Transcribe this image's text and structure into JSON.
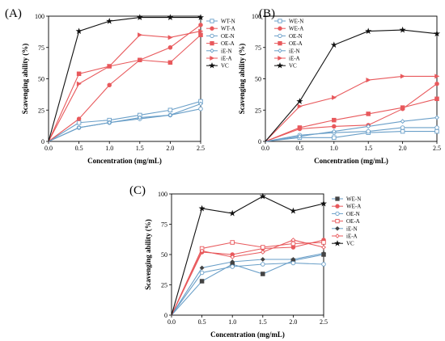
{
  "colors": {
    "blue": "#6a9fc8",
    "red": "#e8595c",
    "pink": "#e89a9a",
    "dark": "#444444",
    "black": "#111111",
    "gray": "#777777"
  },
  "chart_data": [
    {
      "type": "line",
      "panel_label": "(A)",
      "xlabel": "Concentration (mg/mL)",
      "ylabel": "Scavenging ability (%)",
      "x": [
        0,
        0.5,
        1.0,
        1.5,
        2.0,
        2.5
      ],
      "xlim": [
        0,
        2.5
      ],
      "ylim": [
        0,
        100
      ],
      "xticks": [
        "0.0",
        "0.5",
        "1.0",
        "1.5",
        "2.0",
        "2.5"
      ],
      "yticks": [
        "0",
        "25",
        "50",
        "75",
        "100"
      ],
      "legend_position": "right",
      "series": [
        {
          "name": "WT-N",
          "color": "#6a9fc8",
          "marker": "square-open",
          "values": [
            0,
            15,
            17,
            21,
            25,
            32
          ]
        },
        {
          "name": "WT-A",
          "color": "#e8595c",
          "marker": "circle-filled",
          "values": [
            0,
            18,
            45,
            65,
            75,
            93
          ]
        },
        {
          "name": "OE-N",
          "color": "#6a9fc8",
          "marker": "circle-open",
          "values": [
            0,
            11,
            15,
            18,
            21,
            26
          ]
        },
        {
          "name": "OE-A",
          "color": "#e8595c",
          "marker": "square-filled",
          "values": [
            0,
            54,
            60,
            65,
            63,
            85
          ]
        },
        {
          "name": "iE-N",
          "color": "#6a9fc8",
          "marker": "diamond-open",
          "values": [
            0,
            11,
            15,
            19,
            21,
            30
          ]
        },
        {
          "name": "iE-A",
          "color": "#e8595c",
          "marker": "triangle-filled",
          "values": [
            0,
            46,
            60,
            85,
            83,
            88
          ]
        },
        {
          "name": "VC",
          "color": "#111111",
          "marker": "star-filled",
          "values": [
            0,
            88,
            96,
            99,
            99,
            99
          ]
        }
      ]
    },
    {
      "type": "line",
      "panel_label": "(B)",
      "xlabel": "Concentration (mg/mL)",
      "ylabel": "Scavenging ability (%)",
      "x": [
        0,
        0.5,
        1.0,
        1.5,
        2.0,
        2.5
      ],
      "xlim": [
        0,
        2.5
      ],
      "ylim": [
        0,
        100
      ],
      "xticks": [
        "0.0",
        "0.5",
        "1.0",
        "1.5",
        "2.0",
        "2.5"
      ],
      "yticks": [
        "0",
        "25",
        "50",
        "75",
        "100"
      ],
      "legend_position": "top-right",
      "series": [
        {
          "name": "WE-N",
          "color": "#6a9fc8",
          "marker": "square-open",
          "values": [
            0,
            3,
            3,
            7,
            8,
            8
          ]
        },
        {
          "name": "WE-A",
          "color": "#e8595c",
          "marker": "circle-filled",
          "values": [
            0,
            10,
            12,
            13,
            26,
            46
          ]
        },
        {
          "name": "OE-N",
          "color": "#6a9fc8",
          "marker": "circle-open",
          "values": [
            0,
            5,
            7,
            8,
            11,
            11
          ]
        },
        {
          "name": "OE-A",
          "color": "#e8595c",
          "marker": "square-filled",
          "values": [
            0,
            11,
            17,
            22,
            27,
            34
          ]
        },
        {
          "name": "iE-N",
          "color": "#6a9fc8",
          "marker": "diamond-open",
          "values": [
            0,
            4,
            8,
            12,
            16,
            19
          ]
        },
        {
          "name": "iE-A",
          "color": "#e8595c",
          "marker": "triangle-filled",
          "values": [
            0,
            28,
            35,
            49,
            52,
            52
          ]
        },
        {
          "name": "VC",
          "color": "#111111",
          "marker": "star-filled",
          "values": [
            0,
            32,
            77,
            88,
            89,
            86
          ]
        }
      ]
    },
    {
      "type": "line",
      "panel_label": "(C)",
      "xlabel": "Concentration (mg/mL)",
      "ylabel": "Scavenging ability (%)",
      "x": [
        0,
        0.5,
        1.0,
        1.5,
        2.0,
        2.5
      ],
      "xlim": [
        0,
        2.5
      ],
      "ylim": [
        0,
        100
      ],
      "xticks": [
        "0.0",
        "0.5",
        "1.0",
        "1.5",
        "2.0",
        "2.5"
      ],
      "yticks": [
        "0",
        "25",
        "50",
        "75",
        "100"
      ],
      "legend_position": "right",
      "series": [
        {
          "name": "WE-N",
          "color": "#6a9fc8",
          "marker": "square-filled-dark",
          "values": [
            0,
            28,
            42,
            34,
            45,
            50
          ]
        },
        {
          "name": "WE-A",
          "color": "#e8595c",
          "marker": "circle-filled",
          "values": [
            0,
            52,
            50,
            55,
            56,
            62
          ]
        },
        {
          "name": "OE-N",
          "color": "#6a9fc8",
          "marker": "circle-open",
          "values": [
            0,
            35,
            40,
            42,
            43,
            42
          ]
        },
        {
          "name": "OE-A",
          "color": "#e8595c",
          "marker": "square-open",
          "values": [
            0,
            55,
            60,
            56,
            59,
            60
          ]
        },
        {
          "name": "iE-N",
          "color": "#6a9fc8",
          "marker": "diamond-filled-dark",
          "values": [
            0,
            39,
            44,
            46,
            46,
            51
          ]
        },
        {
          "name": "iE-A",
          "color": "#e8595c",
          "marker": "diamond-open",
          "values": [
            0,
            53,
            48,
            52,
            62,
            56
          ]
        },
        {
          "name": "VC",
          "color": "#111111",
          "marker": "star-filled",
          "values": [
            0,
            88,
            84,
            98,
            86,
            92
          ]
        }
      ]
    }
  ]
}
